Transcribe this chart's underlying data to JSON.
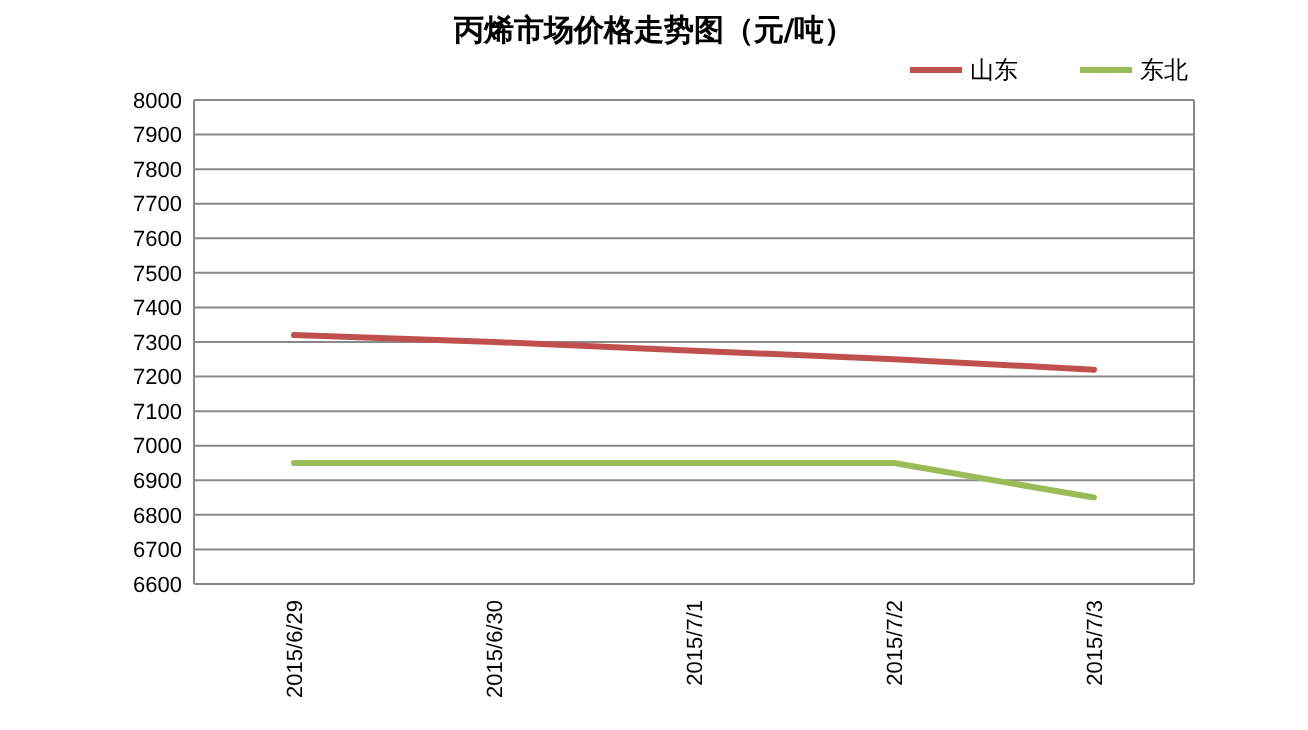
{
  "chart_data": {
    "type": "line",
    "title": "丙烯市场价格走势图（元/吨）",
    "categories": [
      "2015/6/29",
      "2015/6/30",
      "2015/7/1",
      "2015/7/2",
      "2015/7/3"
    ],
    "series": [
      {
        "name": "山东",
        "color": "#c0504d",
        "values": [
          7320,
          7300,
          7275,
          7250,
          7220
        ]
      },
      {
        "name": "东北",
        "color": "#9bbb59",
        "values": [
          6950,
          6950,
          6950,
          6950,
          6850
        ]
      }
    ],
    "ylim": [
      6600,
      8000
    ],
    "yticks": [
      6600,
      6700,
      6800,
      6900,
      7000,
      7100,
      7200,
      7300,
      7400,
      7500,
      7600,
      7700,
      7800,
      7900,
      8000
    ],
    "grid": "y",
    "legend": "top right",
    "marker": "none",
    "line_style": "solid"
  }
}
